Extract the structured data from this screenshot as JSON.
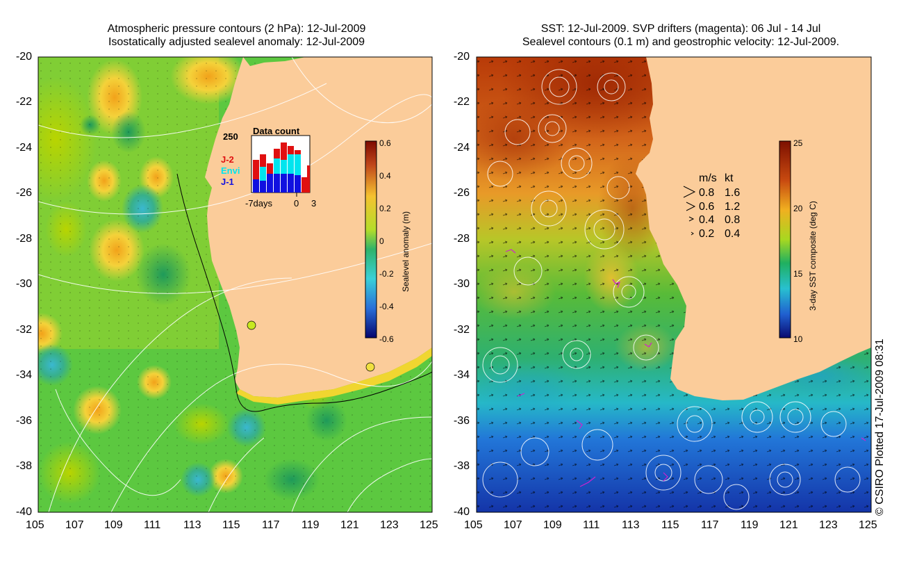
{
  "left_panel": {
    "title_line1": "Atmospheric pressure contours (2 hPa): 12-Jul-2009",
    "title_line2": "Isostatically adjusted sealevel anomaly: 12-Jul-2009",
    "x_ticks": [
      "105",
      "107",
      "109",
      "111",
      "113",
      "115",
      "117",
      "119",
      "121",
      "123",
      "125"
    ],
    "y_ticks": [
      "-20",
      "-22",
      "-24",
      "-26",
      "-28",
      "-30",
      "-32",
      "-34",
      "-36",
      "-38",
      "-40"
    ],
    "colorbar": {
      "label": "Sealevel anomaly (m)",
      "ticks": [
        "0.6",
        "0.4",
        "0.2",
        "0",
        "-0.2",
        "-0.4",
        "-0.6"
      ],
      "range": [
        -0.6,
        0.6
      ]
    },
    "data_count_inset": {
      "title": "Data count",
      "y_max_label": "250",
      "x_labels": [
        "-7days",
        "0",
        "3"
      ],
      "legend": [
        {
          "name": "J-2",
          "color": "#e01010"
        },
        {
          "name": "Envi",
          "color": "#00e5ee"
        },
        {
          "name": "J-1",
          "color": "#1010e0"
        }
      ]
    }
  },
  "right_panel": {
    "title_line1": "SST: 12-Jul-2009. SVP drifters (magenta): 06 Jul - 14 Jul",
    "title_line2": "Sealevel contours (0.1 m) and geostrophic velocity: 12-Jul-2009.",
    "x_ticks": [
      "105",
      "107",
      "109",
      "111",
      "113",
      "115",
      "117",
      "119",
      "121",
      "123",
      "125"
    ],
    "y_ticks": [
      "-20",
      "-22",
      "-24",
      "-26",
      "-28",
      "-30",
      "-32",
      "-34",
      "-36",
      "-38",
      "-40"
    ],
    "colorbar": {
      "label": "3-day SST composite (deg C)",
      "ticks": [
        "25",
        "20",
        "15",
        "10"
      ],
      "range": [
        10,
        25
      ]
    },
    "velocity_legend": {
      "header_ms": "m/s",
      "header_kt": "kt",
      "rows": [
        {
          "ms": "0.8",
          "kt": "1.6"
        },
        {
          "ms": "0.6",
          "kt": "1.2"
        },
        {
          "ms": "0.4",
          "kt": "0.8"
        },
        {
          "ms": "0.2",
          "kt": "0.4"
        }
      ]
    }
  },
  "credit": "© CSIRO Plotted 17-Jul-2009 08:31"
}
